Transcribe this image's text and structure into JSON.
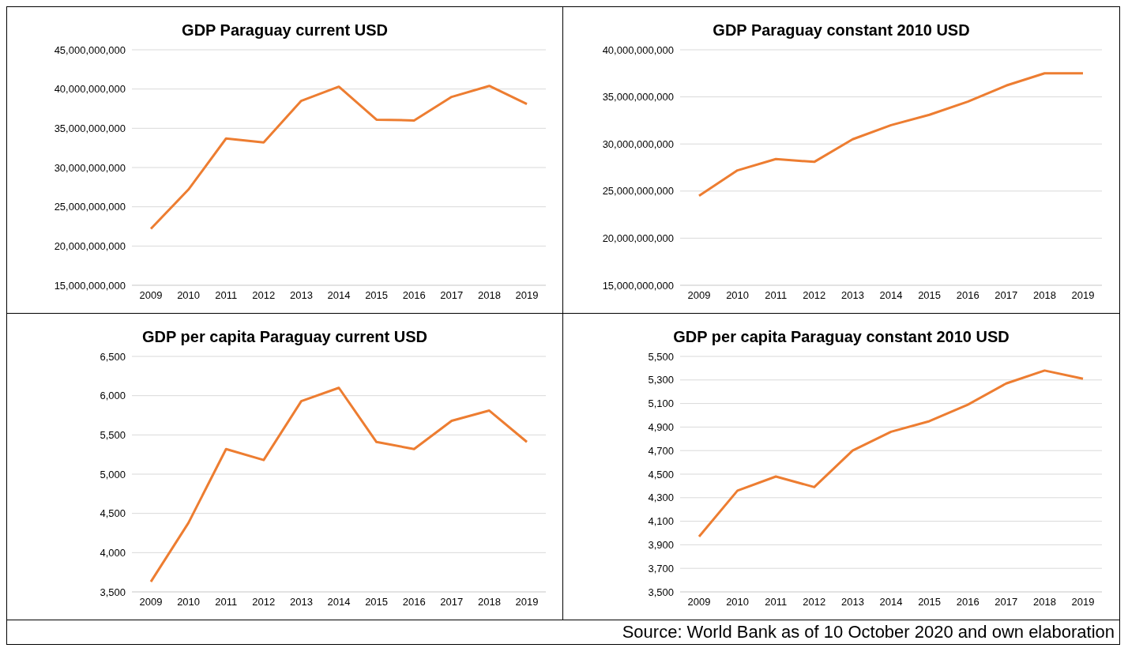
{
  "chart_data": [
    {
      "type": "line",
      "title": "GDP Paraguay current USD",
      "categories": [
        "2009",
        "2010",
        "2011",
        "2012",
        "2013",
        "2014",
        "2015",
        "2016",
        "2017",
        "2018",
        "2019"
      ],
      "series": [
        {
          "color": "#ed7d31",
          "values": [
            22200000000,
            27200000000,
            33700000000,
            33200000000,
            38500000000,
            40300000000,
            36100000000,
            36000000000,
            39000000000,
            40400000000,
            38100000000
          ]
        }
      ],
      "ylim": [
        15000000000,
        45000000000
      ],
      "yticks": [
        {
          "value": 15000000000,
          "label": "15,000,000,000"
        },
        {
          "value": 20000000000,
          "label": "20,000,000,000"
        },
        {
          "value": 25000000000,
          "label": "25,000,000,000"
        },
        {
          "value": 30000000000,
          "label": "30,000,000,000"
        },
        {
          "value": 35000000000,
          "label": "35,000,000,000"
        },
        {
          "value": 40000000000,
          "label": "40,000,000,000"
        },
        {
          "value": 45000000000,
          "label": "45,000,000,000"
        }
      ],
      "grid": "y",
      "marker": "none",
      "line_style": "solid"
    },
    {
      "type": "line",
      "title": "GDP Paraguay constant 2010 USD",
      "categories": [
        "2009",
        "2010",
        "2011",
        "2012",
        "2013",
        "2014",
        "2015",
        "2016",
        "2017",
        "2018",
        "2019"
      ],
      "series": [
        {
          "color": "#ed7d31",
          "values": [
            24500000000,
            27200000000,
            28400000000,
            28100000000,
            30500000000,
            32000000000,
            33100000000,
            34500000000,
            36200000000,
            37500000000,
            37500000000
          ]
        }
      ],
      "ylim": [
        15000000000,
        40000000000
      ],
      "yticks": [
        {
          "value": 15000000000,
          "label": "15,000,000,000"
        },
        {
          "value": 20000000000,
          "label": "20,000,000,000"
        },
        {
          "value": 25000000000,
          "label": "25,000,000,000"
        },
        {
          "value": 30000000000,
          "label": "30,000,000,000"
        },
        {
          "value": 35000000000,
          "label": "35,000,000,000"
        },
        {
          "value": 40000000000,
          "label": "40,000,000,000"
        }
      ],
      "grid": "y",
      "marker": "none",
      "line_style": "solid"
    },
    {
      "type": "line",
      "title": "GDP per capita Paraguay current USD",
      "categories": [
        "2009",
        "2010",
        "2011",
        "2012",
        "2013",
        "2014",
        "2015",
        "2016",
        "2017",
        "2018",
        "2019"
      ],
      "series": [
        {
          "color": "#ed7d31",
          "values": [
            3630,
            4380,
            5320,
            5180,
            5930,
            6100,
            5410,
            5320,
            5680,
            5810,
            5410
          ]
        }
      ],
      "ylim": [
        3500,
        6500
      ],
      "yticks": [
        {
          "value": 3500,
          "label": "3,500"
        },
        {
          "value": 4000,
          "label": "4,000"
        },
        {
          "value": 4500,
          "label": "4,500"
        },
        {
          "value": 5000,
          "label": "5,000"
        },
        {
          "value": 5500,
          "label": "5,500"
        },
        {
          "value": 6000,
          "label": "6,000"
        },
        {
          "value": 6500,
          "label": "6,500"
        }
      ],
      "grid": "y",
      "marker": "none",
      "line_style": "solid"
    },
    {
      "type": "line",
      "title": "GDP per capita Paraguay constant 2010 USD",
      "categories": [
        "2009",
        "2010",
        "2011",
        "2012",
        "2013",
        "2014",
        "2015",
        "2016",
        "2017",
        "2018",
        "2019"
      ],
      "series": [
        {
          "color": "#ed7d31",
          "values": [
            3970,
            4360,
            4480,
            4390,
            4700,
            4860,
            4950,
            5090,
            5270,
            5380,
            5310
          ]
        }
      ],
      "ylim": [
        3500,
        5500
      ],
      "yticks": [
        {
          "value": 3500,
          "label": "3,500"
        },
        {
          "value": 3700,
          "label": "3,700"
        },
        {
          "value": 3900,
          "label": "3,900"
        },
        {
          "value": 4100,
          "label": "4,100"
        },
        {
          "value": 4300,
          "label": "4,300"
        },
        {
          "value": 4500,
          "label": "4,500"
        },
        {
          "value": 4700,
          "label": "4,700"
        },
        {
          "value": 4900,
          "label": "4,900"
        },
        {
          "value": 5100,
          "label": "5,100"
        },
        {
          "value": 5300,
          "label": "5,300"
        },
        {
          "value": 5500,
          "label": "5,500"
        }
      ],
      "grid": "y",
      "marker": "none",
      "line_style": "solid",
      "annotations": [
        "Source: World Bank as of 10 October 2020 and own elaboration"
      ]
    }
  ]
}
